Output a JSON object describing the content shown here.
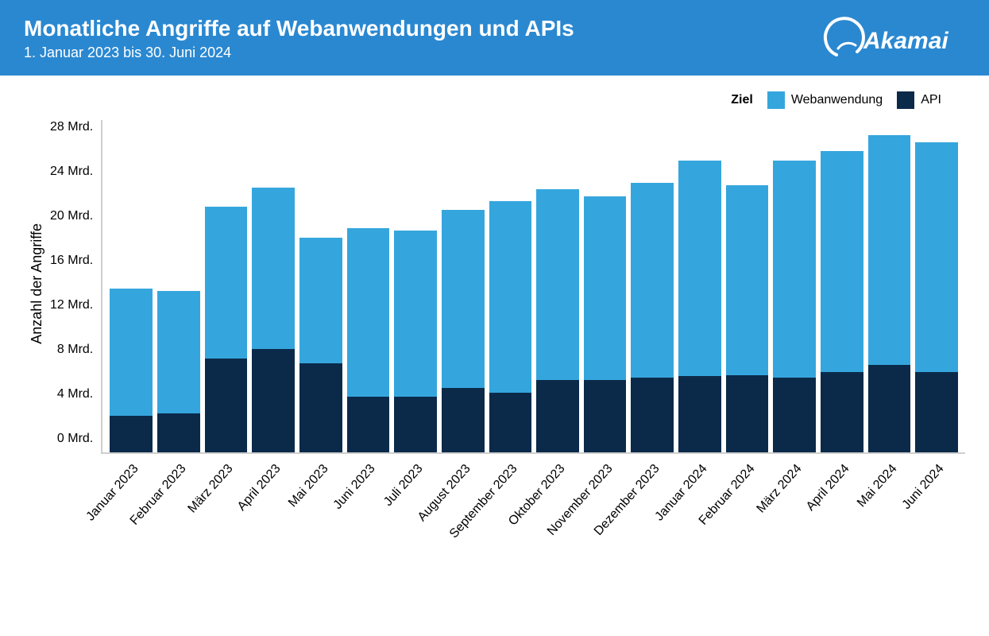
{
  "header": {
    "title": "Monatliche Angriffe auf Webanwendungen und APIs",
    "subtitle": "1. Januar 2023 bis 30. Juni 2024",
    "brand": "Akamai",
    "bg_color": "#2a88d1",
    "text_color": "#ffffff"
  },
  "legend": {
    "label": "Ziel",
    "items": [
      {
        "name": "Webanwendung",
        "color": "#35a6dd"
      },
      {
        "name": "API",
        "color": "#0b2a4a"
      }
    ]
  },
  "chart": {
    "type": "stacked-bar",
    "y_axis_label": "Anzahl der Angriffe",
    "ylim": [
      0,
      28
    ],
    "ytick_step": 4,
    "ytick_suffix": " Mrd.",
    "axis_color": "#cfcfcf",
    "label_fontsize": 16,
    "background_color": "#ffffff",
    "categories": [
      "Januar 2023",
      "Februar 2023",
      "März 2023",
      "April 2023",
      "Mai 2023",
      "Juni 2023",
      "Juli 2023",
      "August 2023",
      "September 2023",
      "Oktober 2023",
      "November 2023",
      "Dezember 2023",
      "Januar 2024",
      "Februar 2024",
      "März 2024",
      "April 2024",
      "Mai 2024",
      "Juni 2024"
    ],
    "series": [
      {
        "name": "API",
        "color": "#0b2a4a",
        "values": [
          3.1,
          3.3,
          7.9,
          8.7,
          7.5,
          4.7,
          4.7,
          5.4,
          5.0,
          6.1,
          6.1,
          6.3,
          6.4,
          6.5,
          6.3,
          6.8,
          7.4,
          6.8
        ]
      },
      {
        "name": "Webanwendung",
        "color": "#35a6dd",
        "values": [
          10.7,
          10.3,
          12.8,
          13.6,
          10.6,
          14.2,
          14.0,
          15.0,
          16.2,
          16.1,
          15.5,
          16.4,
          18.2,
          16.0,
          18.3,
          18.6,
          19.3,
          19.3
        ]
      }
    ]
  }
}
